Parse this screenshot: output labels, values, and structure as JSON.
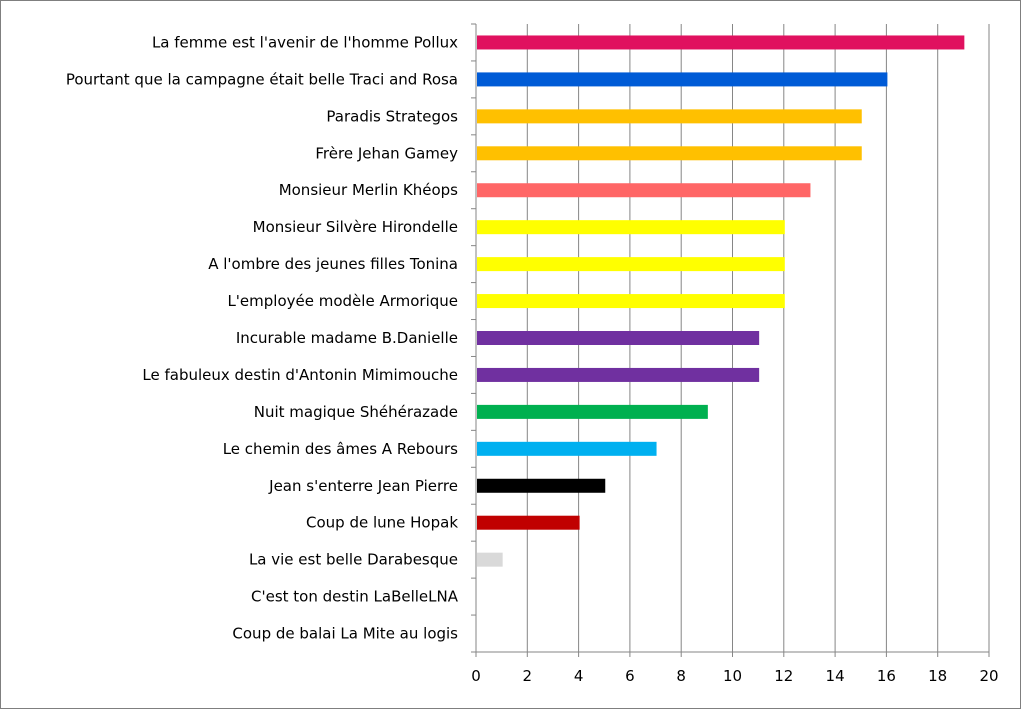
{
  "chart_data": {
    "type": "bar",
    "orientation": "horizontal",
    "categories": [
      "La femme est l'avenir de l'homme Pollux",
      "Pourtant que la campagne était belle Traci and Rosa",
      "Paradis Strategos",
      "Frère Jehan Gamey",
      "Monsieur Merlin Khéops",
      "Monsieur Silvère Hirondelle",
      "A l'ombre des jeunes filles Tonina",
      "L'employée modèle Armorique",
      "Incurable madame B.Danielle",
      "Le fabuleux destin d'Antonin Mimimouche",
      "Nuit magique Shéhérazade",
      "Le chemin des âmes A Rebours",
      "Jean s'enterre Jean Pierre",
      "Coup de lune Hopak",
      "La vie est belle Darabesque",
      "C'est ton destin LaBelleLNA",
      "Coup de balai La Mite au logis"
    ],
    "values": [
      19,
      16,
      15,
      15,
      13,
      12,
      12,
      12,
      11,
      11,
      9,
      7,
      5,
      4,
      1,
      0,
      0
    ],
    "colors": [
      "#e0115f",
      "#005bd6",
      "#ffc000",
      "#ffc000",
      "#ff6666",
      "#ffff00",
      "#ffff00",
      "#ffff00",
      "#7030a0",
      "#7030a0",
      "#00b050",
      "#00b0f0",
      "#000000",
      "#c00000",
      "#d9d9d9",
      "#d9d9d9",
      "#d9d9d9"
    ],
    "xlim": [
      0,
      20
    ],
    "x_ticks": [
      "0",
      "2",
      "4",
      "6",
      "8",
      "10",
      "12",
      "14",
      "16",
      "18",
      "20"
    ],
    "grid": "vertical",
    "legend": "none",
    "title": "",
    "xlabel": "",
    "ylabel": ""
  }
}
